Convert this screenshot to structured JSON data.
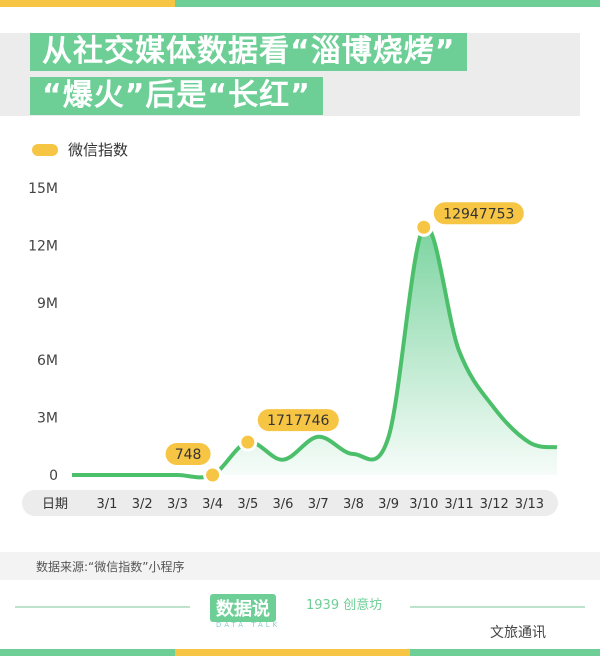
{
  "title": {
    "line1": "从社交媒体数据看“淄博烧烤”",
    "line2": "“爆火”后是“长红”"
  },
  "colors": {
    "accent": "#6dcf96",
    "highlight": "#f7c544"
  },
  "chart_data": {
    "type": "area",
    "legend": [
      "微信指数"
    ],
    "legend_placement": "top-left",
    "xlabel": "日期",
    "x": [
      "3/1",
      "3/2",
      "3/3",
      "3/4",
      "3/5",
      "3/6",
      "3/7",
      "3/8",
      "3/9",
      "3/10",
      "3/11",
      "3/12",
      "3/13"
    ],
    "series": [
      {
        "name": "微信指数",
        "values": [
          0,
          0,
          0,
          748,
          1717746,
          800000,
          2000000,
          1100000,
          2000000,
          12947753,
          6500000,
          3500000,
          1700000
        ]
      }
    ],
    "annotations": [
      {
        "x": "3/4",
        "label": "748"
      },
      {
        "x": "3/5",
        "label": "1717746"
      },
      {
        "x": "3/10",
        "label": "12947753"
      }
    ],
    "yticks": [
      "0",
      "3M",
      "6M",
      "9M",
      "12M",
      "15M"
    ],
    "ylim": [
      0,
      15000000
    ],
    "grid": false
  },
  "footer": {
    "source": "数据来源:“微信指数”小程序",
    "logo1": "数据说",
    "logo1_sub": "DATA TALK",
    "logo2": "1939 创意坊",
    "watermark": "文旅通讯"
  }
}
